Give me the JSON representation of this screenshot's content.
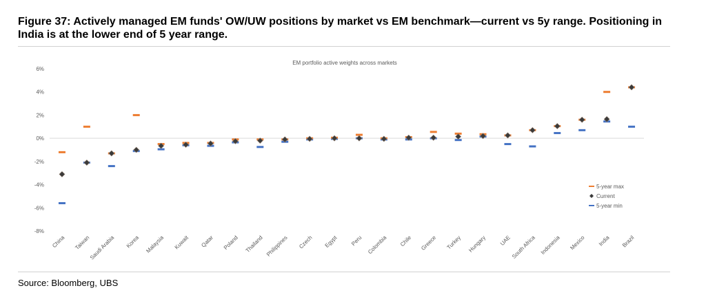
{
  "figure": {
    "title": "Figure 37: Actively managed EM funds' OW/UW positions by market vs EM benchmark—current vs 5y range. Positioning in India is at the lower end of 5 year range.",
    "source": "Source: Bloomberg, UBS"
  },
  "chart_data": {
    "type": "scatter",
    "title": "EM portfolio active weights across markets",
    "xlabel": "",
    "ylabel": "",
    "ylim": [
      -8,
      6
    ],
    "y_ticks": [
      -8,
      -6,
      -4,
      -2,
      0,
      2,
      4,
      6
    ],
    "y_tick_format": "percent",
    "grid": false,
    "legend_position": "right",
    "categories": [
      "China",
      "Taiwan",
      "Saudi Arabia",
      "Korea",
      "Malaysia",
      "Kuwait",
      "Qatar",
      "Poland",
      "Thailand",
      "Philippines",
      "Czech",
      "Egypt",
      "Peru",
      "Colombia",
      "Chile",
      "Greece",
      "Turkey",
      "Hungary",
      "UAE",
      "South Africa",
      "Indonesia",
      "Mexico",
      "India",
      "Brazil"
    ],
    "series": [
      {
        "name": "5-year max",
        "marker": "dash",
        "color": "#ED7D31",
        "values": [
          -1.2,
          1.0,
          -1.3,
          2.0,
          -0.5,
          -0.4,
          -0.4,
          -0.1,
          -0.1,
          -0.1,
          0.0,
          0.05,
          0.3,
          0.0,
          0.1,
          0.55,
          0.4,
          0.35,
          0.25,
          0.7,
          1.05,
          1.6,
          4.0,
          4.4
        ]
      },
      {
        "name": "Current",
        "marker": "diamond",
        "color": "#3A3A3A",
        "values": [
          -3.1,
          -2.1,
          -1.3,
          -1.0,
          -0.65,
          -0.55,
          -0.45,
          -0.25,
          -0.2,
          -0.1,
          -0.05,
          0.0,
          0.0,
          -0.05,
          0.05,
          0.05,
          0.15,
          0.2,
          0.25,
          0.7,
          1.05,
          1.6,
          1.65,
          4.4
        ]
      },
      {
        "name": "5-year min",
        "marker": "dash",
        "color": "#4472C4",
        "values": [
          -5.6,
          -2.1,
          -2.4,
          -1.1,
          -0.95,
          -0.6,
          -0.65,
          -0.35,
          -0.75,
          -0.3,
          -0.1,
          -0.05,
          0.0,
          -0.1,
          -0.1,
          0.0,
          -0.15,
          0.15,
          -0.5,
          -0.7,
          0.45,
          0.7,
          1.45,
          1.0
        ]
      }
    ]
  }
}
